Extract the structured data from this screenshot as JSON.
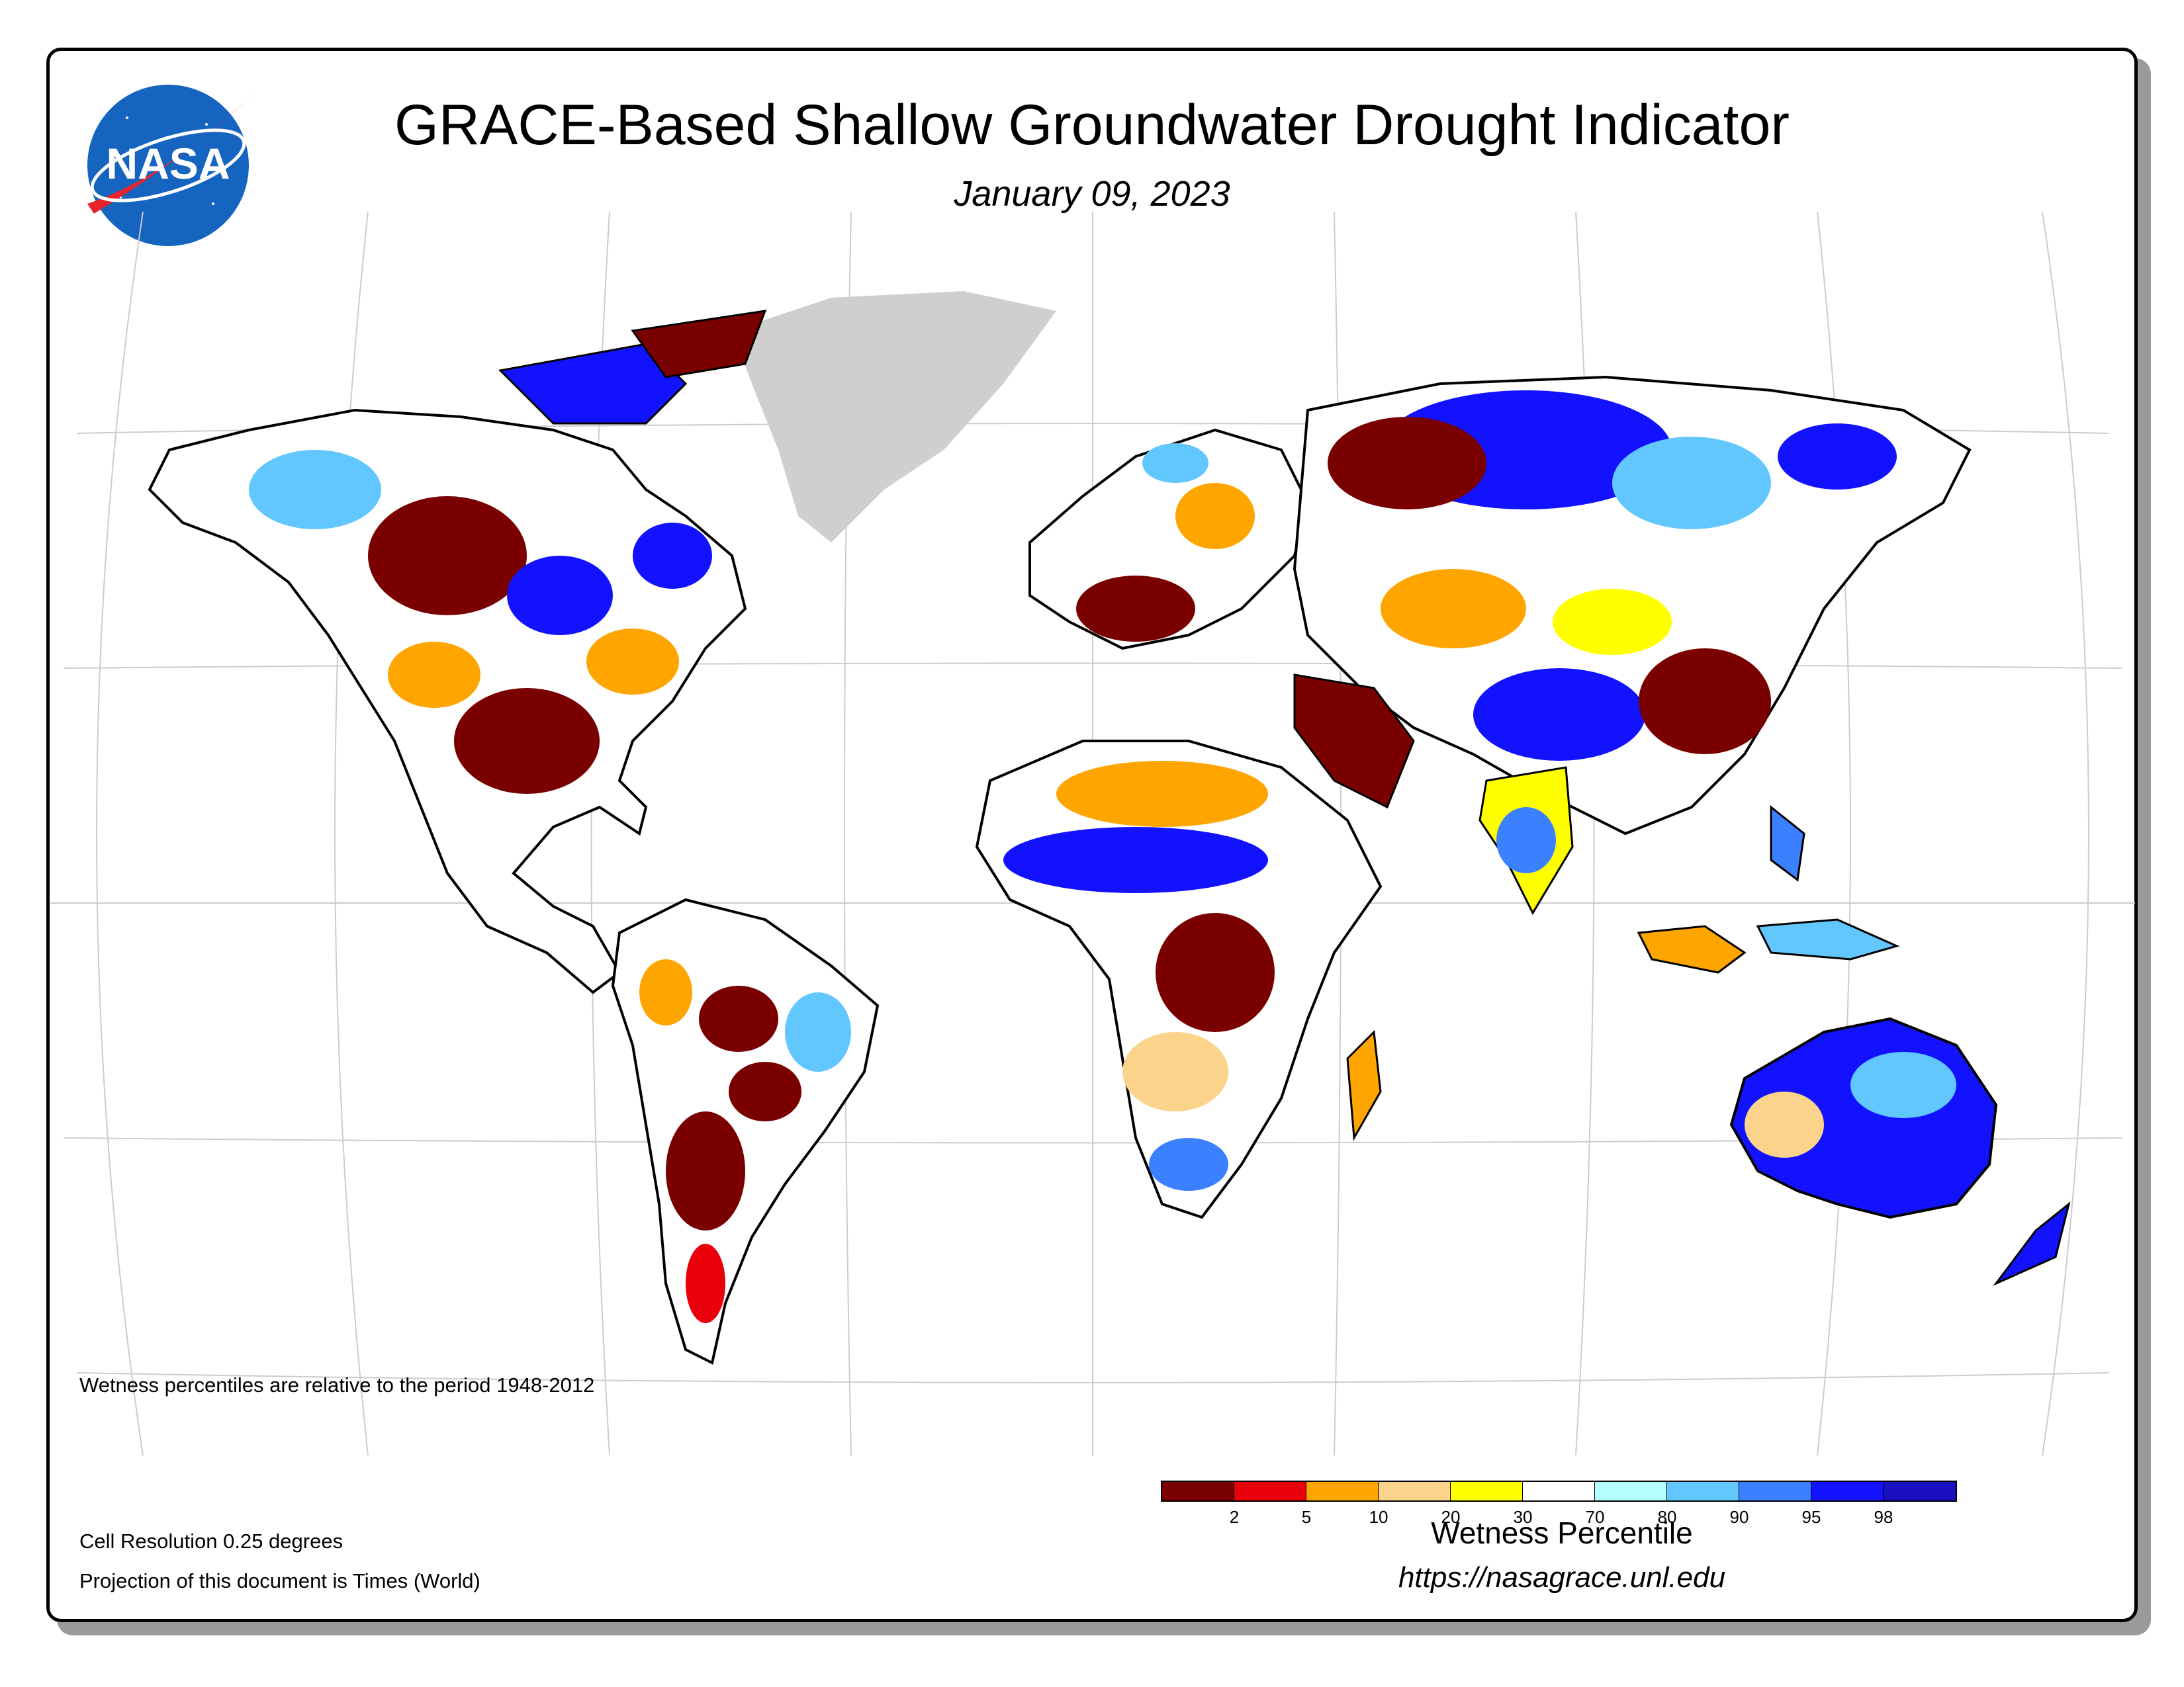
{
  "header": {
    "title": "GRACE-Based Shallow Groundwater Drought Indicator",
    "date": "January 09, 2023",
    "logo_text": "NASA"
  },
  "notes": {
    "period": "Wetness percentiles are relative to the period 1948-2012",
    "resolution": "Cell Resolution 0.25 degrees",
    "projection": "Projection of this document is Times (World)"
  },
  "legend": {
    "title": "Wetness Percentile",
    "ticks": [
      "2",
      "5",
      "10",
      "20",
      "30",
      "70",
      "80",
      "90",
      "95",
      "98"
    ],
    "colors": [
      "#7a0000",
      "#e8000b",
      "#ffa500",
      "#fcd38a",
      "#ffff00",
      "#ffffff",
      "#b3ffff",
      "#63c7ff",
      "#3b80ff",
      "#1212ff",
      "#1a0fbf"
    ]
  },
  "url": "https://nasagrace.unl.edu",
  "map_colors": {
    "greenland": "#cfcfcf",
    "graticule": "#cccccc",
    "outline": "#000000"
  }
}
